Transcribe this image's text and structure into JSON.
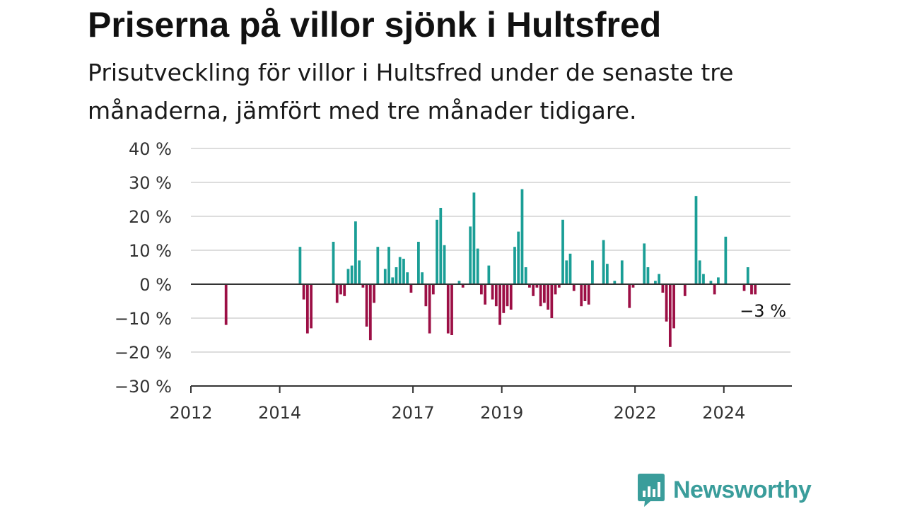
{
  "title": "Priserna på villor sjönk i Hultsfred",
  "subtitle": "Prisutveckling för villor i Hultsfred under de senaste tre månaderna, jämfört med tre månader tidigare.",
  "brand": "Newsworthy",
  "colors": {
    "positive": "#1a9e96",
    "negative": "#9c0f45",
    "grid": "#dddddd",
    "axis": "#333333",
    "brand": "#3a9d9b"
  },
  "chart_data": {
    "type": "bar",
    "ylim": [
      -30,
      40
    ],
    "yticks": [
      40,
      30,
      20,
      10,
      0,
      -10,
      -20,
      -30
    ],
    "ytick_labels": [
      "40 %",
      "30 %",
      "20 %",
      "10 %",
      "0 %",
      "−10 %",
      "−20 %",
      "−30 %"
    ],
    "xlim": [
      "2012-01-01",
      "2025-07-01"
    ],
    "xticks": [
      {
        "date": "2012-01-01",
        "label": "2012"
      },
      {
        "date": "2014-01-01",
        "label": "2014"
      },
      {
        "date": "2017-01-01",
        "label": "2017"
      },
      {
        "date": "2019-01-01",
        "label": "2019"
      },
      {
        "date": "2022-01-01",
        "label": "2022"
      },
      {
        "date": "2024-01-01",
        "label": "2024"
      }
    ],
    "last_value_label": "−3 %",
    "grid": true,
    "series": [
      {
        "values": [
          {
            "x": "2012-10",
            "y": -12
          },
          {
            "x": "2014-06",
            "y": 11
          },
          {
            "x": "2014-07",
            "y": -4.5
          },
          {
            "x": "2014-08",
            "y": -14.5
          },
          {
            "x": "2014-09",
            "y": -13
          },
          {
            "x": "2015-03",
            "y": 12.5
          },
          {
            "x": "2015-04",
            "y": -5.5
          },
          {
            "x": "2015-05",
            "y": -3
          },
          {
            "x": "2015-06",
            "y": -3.5
          },
          {
            "x": "2015-07",
            "y": 4.5
          },
          {
            "x": "2015-08",
            "y": 5.5
          },
          {
            "x": "2015-09",
            "y": 18.5
          },
          {
            "x": "2015-10",
            "y": 7
          },
          {
            "x": "2015-11",
            "y": -1
          },
          {
            "x": "2015-12",
            "y": -12.5
          },
          {
            "x": "2016-01",
            "y": -16.5
          },
          {
            "x": "2016-02",
            "y": -5.5
          },
          {
            "x": "2016-03",
            "y": 11
          },
          {
            "x": "2016-05",
            "y": 4.5
          },
          {
            "x": "2016-06",
            "y": 11
          },
          {
            "x": "2016-07",
            "y": 2
          },
          {
            "x": "2016-08",
            "y": 5
          },
          {
            "x": "2016-09",
            "y": 8
          },
          {
            "x": "2016-10",
            "y": 7.5
          },
          {
            "x": "2016-11",
            "y": 3.5
          },
          {
            "x": "2016-12",
            "y": -2.5
          },
          {
            "x": "2017-02",
            "y": 12.5
          },
          {
            "x": "2017-03",
            "y": 3.5
          },
          {
            "x": "2017-04",
            "y": -6.5
          },
          {
            "x": "2017-05",
            "y": -14.5
          },
          {
            "x": "2017-06",
            "y": -3
          },
          {
            "x": "2017-07",
            "y": 19
          },
          {
            "x": "2017-08",
            "y": 22.5
          },
          {
            "x": "2017-09",
            "y": 11.5
          },
          {
            "x": "2017-10",
            "y": -14.5
          },
          {
            "x": "2017-11",
            "y": -15
          },
          {
            "x": "2018-01",
            "y": 1
          },
          {
            "x": "2018-02",
            "y": -1
          },
          {
            "x": "2018-04",
            "y": 17
          },
          {
            "x": "2018-05",
            "y": 27
          },
          {
            "x": "2018-06",
            "y": 10.5
          },
          {
            "x": "2018-07",
            "y": -3
          },
          {
            "x": "2018-08",
            "y": -6
          },
          {
            "x": "2018-09",
            "y": 5.5
          },
          {
            "x": "2018-10",
            "y": -4.5
          },
          {
            "x": "2018-11",
            "y": -6.5
          },
          {
            "x": "2018-12",
            "y": -12
          },
          {
            "x": "2019-01",
            "y": -8.5
          },
          {
            "x": "2019-02",
            "y": -6.5
          },
          {
            "x": "2019-03",
            "y": -7.5
          },
          {
            "x": "2019-04",
            "y": 11
          },
          {
            "x": "2019-05",
            "y": 15.5
          },
          {
            "x": "2019-06",
            "y": 28
          },
          {
            "x": "2019-07",
            "y": 5
          },
          {
            "x": "2019-08",
            "y": -1
          },
          {
            "x": "2019-09",
            "y": -3.5
          },
          {
            "x": "2019-10",
            "y": -1
          },
          {
            "x": "2019-11",
            "y": -6.5
          },
          {
            "x": "2019-12",
            "y": -5.5
          },
          {
            "x": "2020-01",
            "y": -7.5
          },
          {
            "x": "2020-02",
            "y": -10
          },
          {
            "x": "2020-03",
            "y": -3
          },
          {
            "x": "2020-04",
            "y": -1
          },
          {
            "x": "2020-05",
            "y": 19
          },
          {
            "x": "2020-06",
            "y": 7
          },
          {
            "x": "2020-07",
            "y": 9
          },
          {
            "x": "2020-08",
            "y": -2
          },
          {
            "x": "2020-10",
            "y": -6.5
          },
          {
            "x": "2020-11",
            "y": -5
          },
          {
            "x": "2020-12",
            "y": -6
          },
          {
            "x": "2021-01",
            "y": 7
          },
          {
            "x": "2021-04",
            "y": 13
          },
          {
            "x": "2021-05",
            "y": 6
          },
          {
            "x": "2021-07",
            "y": 1
          },
          {
            "x": "2021-09",
            "y": 7
          },
          {
            "x": "2021-11",
            "y": -7
          },
          {
            "x": "2021-12",
            "y": -1
          },
          {
            "x": "2022-03",
            "y": 12
          },
          {
            "x": "2022-04",
            "y": 5
          },
          {
            "x": "2022-06",
            "y": 1
          },
          {
            "x": "2022-07",
            "y": 3
          },
          {
            "x": "2022-08",
            "y": -2.5
          },
          {
            "x": "2022-09",
            "y": -11
          },
          {
            "x": "2022-10",
            "y": -18.5
          },
          {
            "x": "2022-11",
            "y": -13
          },
          {
            "x": "2023-02",
            "y": -3.5
          },
          {
            "x": "2023-05",
            "y": 26
          },
          {
            "x": "2023-06",
            "y": 7
          },
          {
            "x": "2023-07",
            "y": 3
          },
          {
            "x": "2023-09",
            "y": 1
          },
          {
            "x": "2023-10",
            "y": -3
          },
          {
            "x": "2023-11",
            "y": 2
          },
          {
            "x": "2024-01",
            "y": 14
          },
          {
            "x": "2024-06",
            "y": -2
          },
          {
            "x": "2024-07",
            "y": 5
          },
          {
            "x": "2024-08",
            "y": -3
          },
          {
            "x": "2024-09",
            "y": -3
          }
        ]
      }
    ]
  }
}
